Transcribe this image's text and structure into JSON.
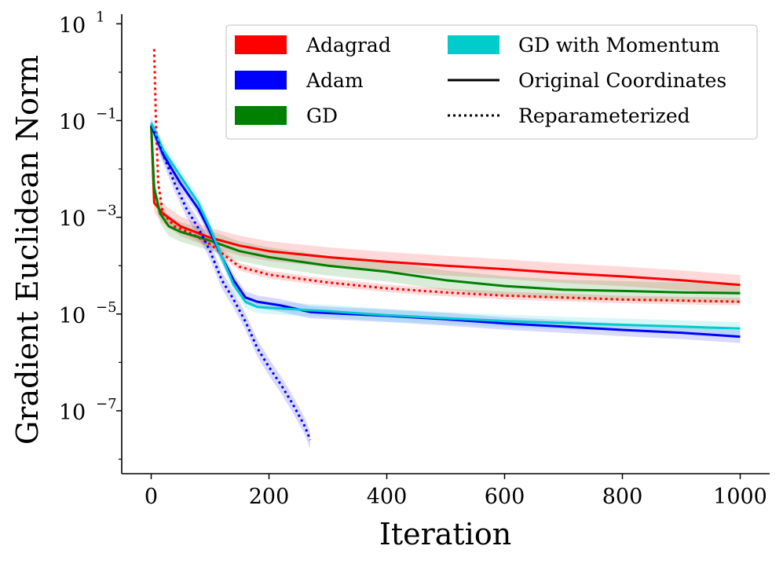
{
  "chart_data": {
    "type": "line",
    "xlabel": "Iteration",
    "ylabel": "Gradient Euclidean Norm",
    "xlim": [
      -50,
      1050
    ],
    "ylim_log10": [
      -8.3,
      1.2
    ],
    "yscale": "log",
    "grid": false,
    "legend_position": "top-right",
    "x_ticks": [
      "0",
      "200",
      "400",
      "600",
      "800",
      "1000"
    ],
    "y_ticks": [
      {
        "base": "10",
        "exp": "1"
      },
      {
        "base": "10",
        "exp": "−1"
      },
      {
        "base": "10",
        "exp": "−3"
      },
      {
        "base": "10",
        "exp": "−5"
      },
      {
        "base": "10",
        "exp": "−7"
      }
    ],
    "legend": {
      "optimizers": [
        {
          "label": "Adagrad",
          "color": "#ff0000"
        },
        {
          "label": "Adam",
          "color": "#0000ff"
        },
        {
          "label": "GD",
          "color": "#008000"
        },
        {
          "label": "GD with Momentum",
          "color": "#00cccc"
        }
      ],
      "styles": [
        {
          "label": "Original Coordinates",
          "style": "solid"
        },
        {
          "label": "Reparameterized",
          "style": "dotted"
        }
      ]
    },
    "series": [
      {
        "name": "Adagrad",
        "style": "solid",
        "color": "#ff0000",
        "x": [
          0,
          5,
          20,
          50,
          100,
          150,
          200,
          300,
          400,
          500,
          600,
          700,
          800,
          900,
          1000
        ],
        "y": [
          0.08,
          0.002,
          0.0012,
          0.00065,
          0.00038,
          0.00026,
          0.0002,
          0.00015,
          0.00012,
          0.0001,
          8.5e-05,
          7e-05,
          6e-05,
          5e-05,
          4e-05
        ]
      },
      {
        "name": "Adagrad",
        "style": "dotted",
        "color": "#ff0000",
        "x": [
          5,
          8,
          12,
          20,
          40,
          70,
          100,
          150,
          200,
          300,
          400,
          500,
          600,
          700,
          800,
          900,
          1000
        ],
        "y": [
          3.0,
          0.1,
          0.005,
          0.0012,
          0.00065,
          0.00045,
          0.00028,
          9.5e-05,
          6.5e-05,
          4.5e-05,
          3.4e-05,
          2.8e-05,
          2.4e-05,
          2.2e-05,
          2e-05,
          1.9e-05,
          1.8e-05
        ]
      },
      {
        "name": "GD",
        "style": "solid",
        "color": "#008000",
        "x": [
          0,
          5,
          15,
          30,
          50,
          100,
          150,
          200,
          300,
          400,
          500,
          600,
          700,
          800,
          900,
          1000
        ],
        "y": [
          0.08,
          0.004,
          0.0012,
          0.00065,
          0.0005,
          0.00033,
          0.0002,
          0.00015,
          0.0001,
          7.5e-05,
          5e-05,
          3.8e-05,
          3.2e-05,
          3e-05,
          2.8e-05,
          2.7e-05
        ]
      },
      {
        "name": "Adam",
        "style": "solid",
        "color": "#0000ff",
        "x": [
          0,
          20,
          50,
          80,
          100,
          120,
          140,
          160,
          180,
          220,
          270,
          300,
          400,
          500,
          600,
          700,
          800,
          900,
          1000
        ],
        "y": [
          0.08,
          0.02,
          0.005,
          0.0015,
          0.0005,
          0.00015,
          5e-05,
          2.2e-05,
          1.8e-05,
          1.5e-05,
          1.1e-05,
          1.05e-05,
          9.2e-06,
          7.8e-06,
          6.4e-06,
          5.5e-06,
          4.7e-06,
          4.1e-06,
          3.4e-06
        ]
      },
      {
        "name": "GD with Momentum",
        "style": "solid",
        "color": "#00cccc",
        "x": [
          0,
          20,
          50,
          80,
          100,
          120,
          140,
          160,
          180,
          220,
          270,
          300,
          400,
          500,
          600,
          700,
          800,
          900,
          1000
        ],
        "y": [
          0.09,
          0.025,
          0.007,
          0.002,
          0.0006,
          0.00015,
          4e-05,
          1.8e-05,
          1.4e-05,
          1.3e-05,
          1.2e-05,
          1.15e-05,
          9.5e-06,
          8.2e-06,
          7.2e-06,
          6.5e-06,
          6e-06,
          5.5e-06,
          5e-06
        ]
      },
      {
        "name": "Adam",
        "style": "dotted",
        "color": "#0000ff",
        "x": [
          5,
          20,
          40,
          60,
          80,
          100,
          120,
          140,
          160,
          180,
          200,
          220,
          240,
          260,
          270
        ],
        "y": [
          0.06,
          0.02,
          0.005,
          0.0015,
          0.0006,
          0.0002,
          5e-05,
          2e-05,
          7e-06,
          2e-06,
          8e-07,
          3.5e-07,
          1.4e-07,
          5e-08,
          2.5e-08
        ]
      }
    ]
  }
}
